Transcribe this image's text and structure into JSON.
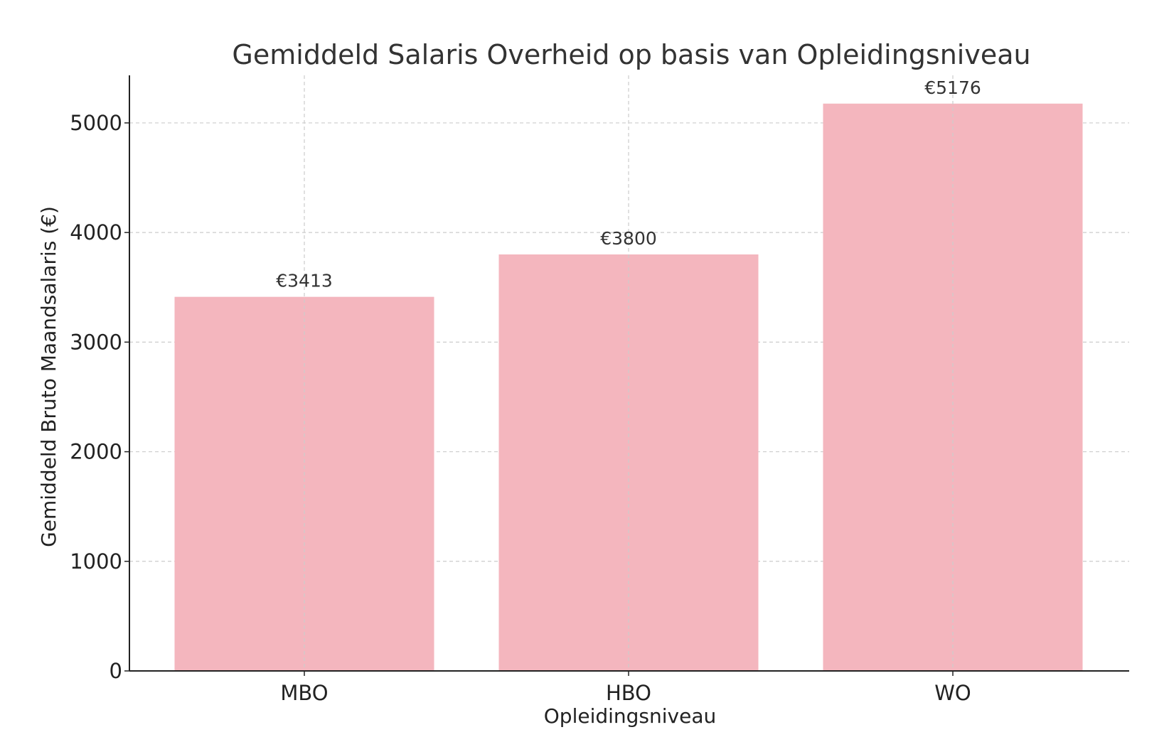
{
  "chart_data": {
    "type": "bar",
    "title": "Gemiddeld Salaris Overheid op basis van Opleidingsniveau",
    "xlabel": "Opleidingsniveau",
    "ylabel": "Gemiddeld Bruto Maandsalaris (€)",
    "categories": [
      "MBO",
      "HBO",
      "WO"
    ],
    "values": [
      3413,
      3800,
      5176
    ],
    "value_labels": [
      "€3413",
      "€3800",
      "€5176"
    ],
    "ylim": [
      0,
      5434
    ],
    "yticks": [
      0,
      1000,
      2000,
      3000,
      4000,
      5000
    ],
    "ytick_labels": [
      "0",
      "1000",
      "2000",
      "3000",
      "4000",
      "5000"
    ],
    "grid": true,
    "bar_color": "#F4B6BE",
    "text_color": "#333333",
    "grid_color": "#CCCCCC"
  }
}
